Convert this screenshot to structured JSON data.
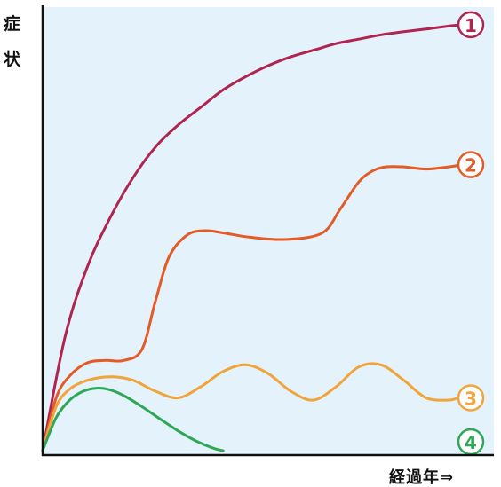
{
  "chart_data": {
    "type": "line",
    "title": "",
    "ylabel": "症状",
    "xlabel": "経過年⇒",
    "grid": false,
    "xlim": [
      0,
      10
    ],
    "ylim": [
      0,
      10
    ],
    "series": [
      {
        "marker": "1",
        "color": "#b0254f",
        "x": [
          0,
          0.5,
          1.0,
          1.5,
          2.0,
          2.5,
          3.0,
          3.5,
          4.0,
          4.5,
          5.0,
          5.5,
          6.0,
          6.5,
          7.0,
          7.5,
          8.0,
          8.5,
          9.0,
          9.3
        ],
        "values": [
          0,
          2.6,
          4.2,
          5.3,
          6.2,
          6.9,
          7.4,
          7.8,
          8.2,
          8.5,
          8.75,
          8.95,
          9.1,
          9.25,
          9.35,
          9.45,
          9.52,
          9.58,
          9.65,
          9.68
        ]
      },
      {
        "marker": "2",
        "color": "#e35b27",
        "x": [
          0,
          0.3,
          0.6,
          1.0,
          1.4,
          1.8,
          2.2,
          2.5,
          2.8,
          3.2,
          3.6,
          4.0,
          4.6,
          5.4,
          6.2,
          6.6,
          7.0,
          7.3,
          7.6,
          8.0,
          8.5,
          9.0,
          9.3
        ],
        "values": [
          0,
          1.2,
          1.7,
          2.0,
          2.05,
          2.05,
          2.3,
          3.4,
          4.4,
          4.9,
          5.0,
          4.95,
          4.85,
          4.8,
          4.95,
          5.5,
          6.1,
          6.35,
          6.45,
          6.45,
          6.4,
          6.45,
          6.5
        ]
      },
      {
        "marker": "3",
        "color": "#f0a43a",
        "x": [
          0,
          0.3,
          0.6,
          1.0,
          1.5,
          2.0,
          2.5,
          3.0,
          3.5,
          4.0,
          4.5,
          5.0,
          5.5,
          6.0,
          6.5,
          7.0,
          7.5,
          8.0,
          8.5,
          9.0,
          9.2
        ],
        "values": [
          0,
          1.0,
          1.4,
          1.6,
          1.68,
          1.6,
          1.35,
          1.2,
          1.45,
          1.8,
          1.95,
          1.75,
          1.35,
          1.15,
          1.45,
          1.9,
          1.95,
          1.6,
          1.2,
          1.15,
          1.2
        ]
      },
      {
        "marker": "4",
        "color": "#2ea757",
        "x": [
          0,
          0.3,
          0.6,
          0.9,
          1.2,
          1.5,
          1.8,
          2.2,
          2.6,
          3.0,
          3.4,
          3.8,
          4.0
        ],
        "values": [
          0,
          0.75,
          1.15,
          1.35,
          1.42,
          1.38,
          1.25,
          1.0,
          0.72,
          0.45,
          0.22,
          0.05,
          0
        ]
      }
    ]
  }
}
